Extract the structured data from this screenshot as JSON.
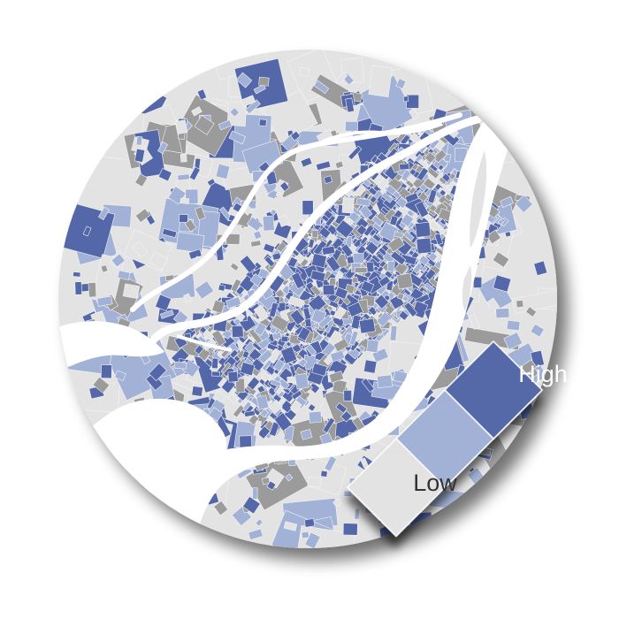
{
  "colors": {
    "low": "#e3e3e3",
    "medium": "#a2b1d6",
    "high": "#5467a8",
    "no_data": "#9b9b9b",
    "water": "#ffffff",
    "parcel_edge": "#f4f4f4"
  },
  "legend": {
    "high_label": "High",
    "low_label": "Low",
    "classes": [
      "low",
      "medium",
      "high"
    ]
  }
}
